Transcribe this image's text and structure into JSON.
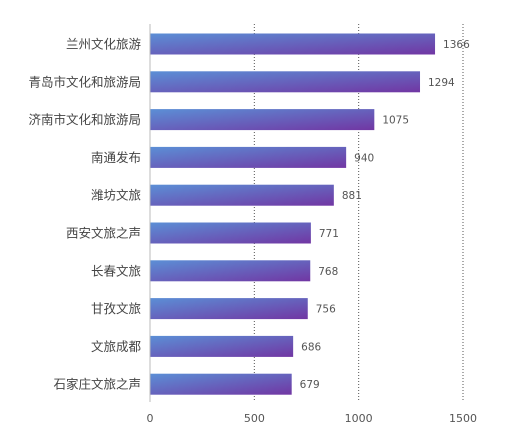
{
  "chart_data": {
    "type": "bar",
    "orientation": "horizontal",
    "title": "",
    "xlabel": "",
    "ylabel": "",
    "categories": [
      "兰州文化旅游",
      "青岛市文化和旅游局",
      "济南市文化和旅游局",
      "南通发布",
      "潍坊文旅",
      "西安文旅之声",
      "长春文旅",
      "甘孜文旅",
      "文旅成都",
      "石家庄文旅之声"
    ],
    "values": [
      1366,
      1294,
      1075,
      940,
      881,
      771,
      768,
      756,
      686,
      679
    ],
    "xlim": [
      0,
      1500
    ],
    "x_ticks": [
      "0",
      "500",
      "1000",
      "1500"
    ],
    "grid": "vertical dotted",
    "legend": "none",
    "colors": {
      "bar_gradient_start": "#5b8fd6",
      "bar_gradient_end": "#7136a3",
      "axis": "#bbbbbb",
      "grid": "#555555",
      "label_text": "#444444",
      "value_text": "#555555"
    }
  }
}
